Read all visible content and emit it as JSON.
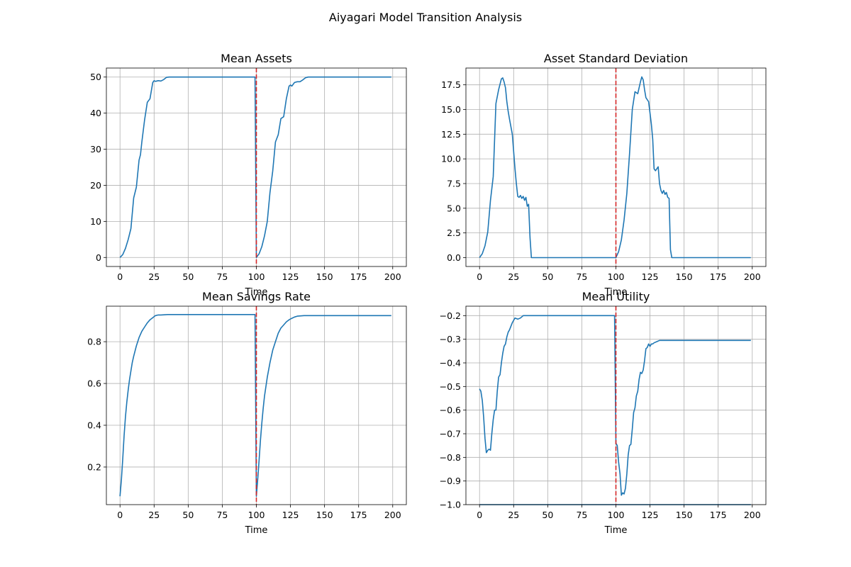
{
  "figure": {
    "suptitle": "Aiyagari Model Transition Analysis"
  },
  "colors": {
    "series": "#1f77b4",
    "shock_line": "#d62728",
    "grid": "#b0b0b0"
  },
  "chart_data": [
    {
      "type": "line",
      "title": "Mean Assets",
      "xlabel": "Time",
      "ylabel": "",
      "xlim": [
        -10,
        210
      ],
      "ylim": [
        -2.5,
        52.5
      ],
      "xticks": [
        0,
        25,
        50,
        75,
        100,
        125,
        150,
        175,
        200
      ],
      "yticks": [
        0,
        10,
        20,
        30,
        40,
        50
      ],
      "ytick_labels": [
        "0",
        "10",
        "20",
        "30",
        "40",
        "50"
      ],
      "grid": true,
      "vline_x": 100,
      "series": [
        {
          "x": [
            0,
            2,
            4,
            6,
            8,
            10,
            12,
            14,
            15,
            16,
            18,
            20,
            22,
            24,
            25,
            26,
            28,
            30,
            32,
            34,
            36,
            38,
            40,
            50,
            60,
            70,
            80,
            90,
            99,
            100,
            101,
            102,
            104,
            106,
            108,
            110,
            112,
            114,
            116,
            118,
            120,
            122,
            124,
            125,
            126,
            128,
            130,
            132,
            134,
            136,
            138,
            140,
            142,
            150,
            160,
            170,
            180,
            190,
            199
          ],
          "y": [
            0,
            0.8,
            2.5,
            5,
            8,
            16.5,
            19.5,
            27,
            28.5,
            32,
            38,
            43,
            44,
            48.5,
            49,
            48.8,
            49,
            48.9,
            49.3,
            49.9,
            50,
            50,
            50,
            50,
            50,
            50,
            50,
            50,
            50,
            0,
            0.5,
            1,
            3,
            6,
            10,
            18,
            24,
            32,
            34,
            38.5,
            39,
            44,
            47.5,
            47.8,
            47.5,
            48.5,
            48.7,
            48.7,
            49.2,
            49.8,
            50,
            50,
            50,
            50,
            50,
            50,
            50,
            50,
            50
          ]
        }
      ]
    },
    {
      "type": "line",
      "title": "Asset Standard Deviation",
      "xlabel": "Time",
      "ylabel": "",
      "xlim": [
        -10,
        210
      ],
      "ylim": [
        -0.9,
        19.2
      ],
      "xticks": [
        0,
        25,
        50,
        75,
        100,
        125,
        150,
        175,
        200
      ],
      "yticks": [
        0,
        2.5,
        5,
        7.5,
        10,
        12.5,
        15,
        17.5
      ],
      "ytick_labels": [
        "0.0",
        "2.5",
        "5.0",
        "7.5",
        "10.0",
        "12.5",
        "15.0",
        "17.5"
      ],
      "grid": true,
      "vline_x": 100,
      "series": [
        {
          "x": [
            0,
            2,
            4,
            6,
            8,
            10,
            12,
            14,
            16,
            17,
            18,
            19,
            20,
            21,
            22,
            24,
            26,
            27,
            28,
            29,
            30,
            31,
            32,
            33,
            34,
            35,
            36,
            37,
            38,
            40,
            50,
            60,
            70,
            80,
            90,
            99,
            100,
            102,
            104,
            106,
            108,
            110,
            112,
            114,
            116,
            118,
            119,
            120,
            121,
            122,
            124,
            126,
            127,
            128,
            129,
            130,
            131,
            132,
            133,
            134,
            135,
            136,
            137,
            138,
            139,
            140,
            141,
            142,
            150,
            160,
            170,
            180,
            190,
            199
          ],
          "y": [
            0,
            0.4,
            1.2,
            2.6,
            5.8,
            8.2,
            15.6,
            17,
            18.1,
            18.2,
            17.8,
            17.2,
            15.8,
            14.8,
            14,
            12.5,
            9,
            7.5,
            6.2,
            6.1,
            6.3,
            6,
            6.2,
            5.8,
            6.1,
            5.2,
            5.4,
            2,
            0,
            0,
            0,
            0,
            0,
            0,
            0,
            0,
            0,
            0.6,
            1.8,
            3.8,
            6.5,
            10.5,
            15,
            16.8,
            16.6,
            17.8,
            18.3,
            18,
            17,
            16.2,
            15.8,
            13.5,
            12,
            9,
            8.8,
            9,
            9.2,
            7.5,
            6.8,
            6.5,
            6.8,
            6.4,
            6.6,
            6.1,
            6,
            0.8,
            0,
            0,
            0,
            0,
            0,
            0,
            0,
            0
          ]
        }
      ]
    },
    {
      "type": "line",
      "title": "Mean Savings Rate",
      "xlabel": "Time",
      "ylabel": "",
      "xlim": [
        -10,
        210
      ],
      "ylim": [
        0.02,
        0.97
      ],
      "xticks": [
        0,
        25,
        50,
        75,
        100,
        125,
        150,
        175,
        200
      ],
      "yticks": [
        0.2,
        0.4,
        0.6,
        0.8
      ],
      "ytick_labels": [
        "0.2",
        "0.4",
        "0.6",
        "0.8"
      ],
      "grid": true,
      "vline_x": 100,
      "series": [
        {
          "x": [
            0,
            1,
            2,
            3,
            4,
            5,
            6,
            7,
            8,
            9,
            10,
            12,
            14,
            16,
            18,
            20,
            22,
            24,
            26,
            28,
            30,
            35,
            40,
            50,
            60,
            70,
            80,
            90,
            99,
            100,
            101,
            102,
            103,
            104,
            105,
            106,
            108,
            110,
            112,
            114,
            116,
            118,
            120,
            122,
            124,
            126,
            128,
            130,
            135,
            140,
            150,
            160,
            170,
            180,
            190,
            199
          ],
          "y": [
            0.06,
            0.14,
            0.24,
            0.35,
            0.44,
            0.51,
            0.57,
            0.62,
            0.66,
            0.7,
            0.73,
            0.78,
            0.82,
            0.85,
            0.87,
            0.89,
            0.905,
            0.915,
            0.925,
            0.928,
            0.928,
            0.93,
            0.93,
            0.93,
            0.93,
            0.93,
            0.93,
            0.93,
            0.93,
            0.06,
            0.14,
            0.23,
            0.33,
            0.41,
            0.48,
            0.54,
            0.63,
            0.7,
            0.76,
            0.8,
            0.84,
            0.865,
            0.88,
            0.895,
            0.905,
            0.912,
            0.918,
            0.922,
            0.925,
            0.925,
            0.925,
            0.925,
            0.925,
            0.925,
            0.925,
            0.925
          ]
        }
      ]
    },
    {
      "type": "line",
      "title": "Mean Utility",
      "xlabel": "Time",
      "ylabel": "",
      "xlim": [
        -10,
        210
      ],
      "ylim": [
        -1.0,
        -0.16
      ],
      "xticks": [
        0,
        25,
        50,
        75,
        100,
        125,
        150,
        175,
        200
      ],
      "yticks": [
        -1.0,
        -0.9,
        -0.8,
        -0.7,
        -0.6,
        -0.5,
        -0.4,
        -0.3,
        -0.2
      ],
      "ytick_labels": [
        "−1.0",
        "−0.9",
        "−0.8",
        "−0.7",
        "−0.6",
        "−0.5",
        "−0.4",
        "−0.3",
        "−0.2"
      ],
      "grid": true,
      "vline_x": 100,
      "series": [
        {
          "x": [
            0,
            1,
            2,
            3,
            4,
            5,
            6,
            7,
            8,
            9,
            10,
            11,
            12,
            13,
            14,
            15,
            16,
            17,
            18,
            19,
            20,
            21,
            22,
            24,
            25,
            26,
            28,
            30,
            32,
            34,
            36,
            40,
            50,
            60,
            70,
            80,
            90,
            99,
            100,
            101,
            102,
            103,
            104,
            105,
            106,
            107,
            108,
            109,
            110,
            111,
            112,
            113,
            114,
            115,
            116,
            117,
            118,
            119,
            120,
            121,
            122,
            123,
            124,
            125,
            126,
            127,
            128,
            130,
            132,
            134,
            136,
            138,
            140,
            150,
            160,
            170,
            180,
            190,
            199
          ],
          "y": [
            -0.51,
            -0.52,
            -0.56,
            -0.63,
            -0.72,
            -0.78,
            -0.77,
            -0.765,
            -0.77,
            -0.7,
            -0.64,
            -0.6,
            -0.6,
            -0.52,
            -0.46,
            -0.45,
            -0.4,
            -0.36,
            -0.33,
            -0.32,
            -0.29,
            -0.27,
            -0.26,
            -0.23,
            -0.22,
            -0.21,
            -0.215,
            -0.21,
            -0.2,
            -0.2,
            -0.2,
            -0.2,
            -0.2,
            -0.2,
            -0.2,
            -0.2,
            -0.2,
            -0.2,
            -0.74,
            -0.75,
            -0.82,
            -0.87,
            -0.96,
            -0.95,
            -0.955,
            -0.93,
            -0.87,
            -0.79,
            -0.75,
            -0.745,
            -0.68,
            -0.61,
            -0.59,
            -0.54,
            -0.52,
            -0.47,
            -0.44,
            -0.445,
            -0.43,
            -0.39,
            -0.34,
            -0.335,
            -0.32,
            -0.33,
            -0.32,
            -0.32,
            -0.315,
            -0.31,
            -0.305,
            -0.305,
            -0.305,
            -0.305,
            -0.305,
            -0.305,
            -0.305,
            -0.305,
            -0.305,
            -0.305,
            -0.305
          ]
        },
        {
          "x": [
            0,
            25,
            50,
            75,
            100,
            125,
            150,
            175,
            199
          ],
          "y": [
            -1.0,
            -1.0,
            -1.0,
            -1.0,
            -1.0,
            -1.0,
            -1.0,
            -1.0,
            -1.0
          ]
        }
      ]
    }
  ]
}
